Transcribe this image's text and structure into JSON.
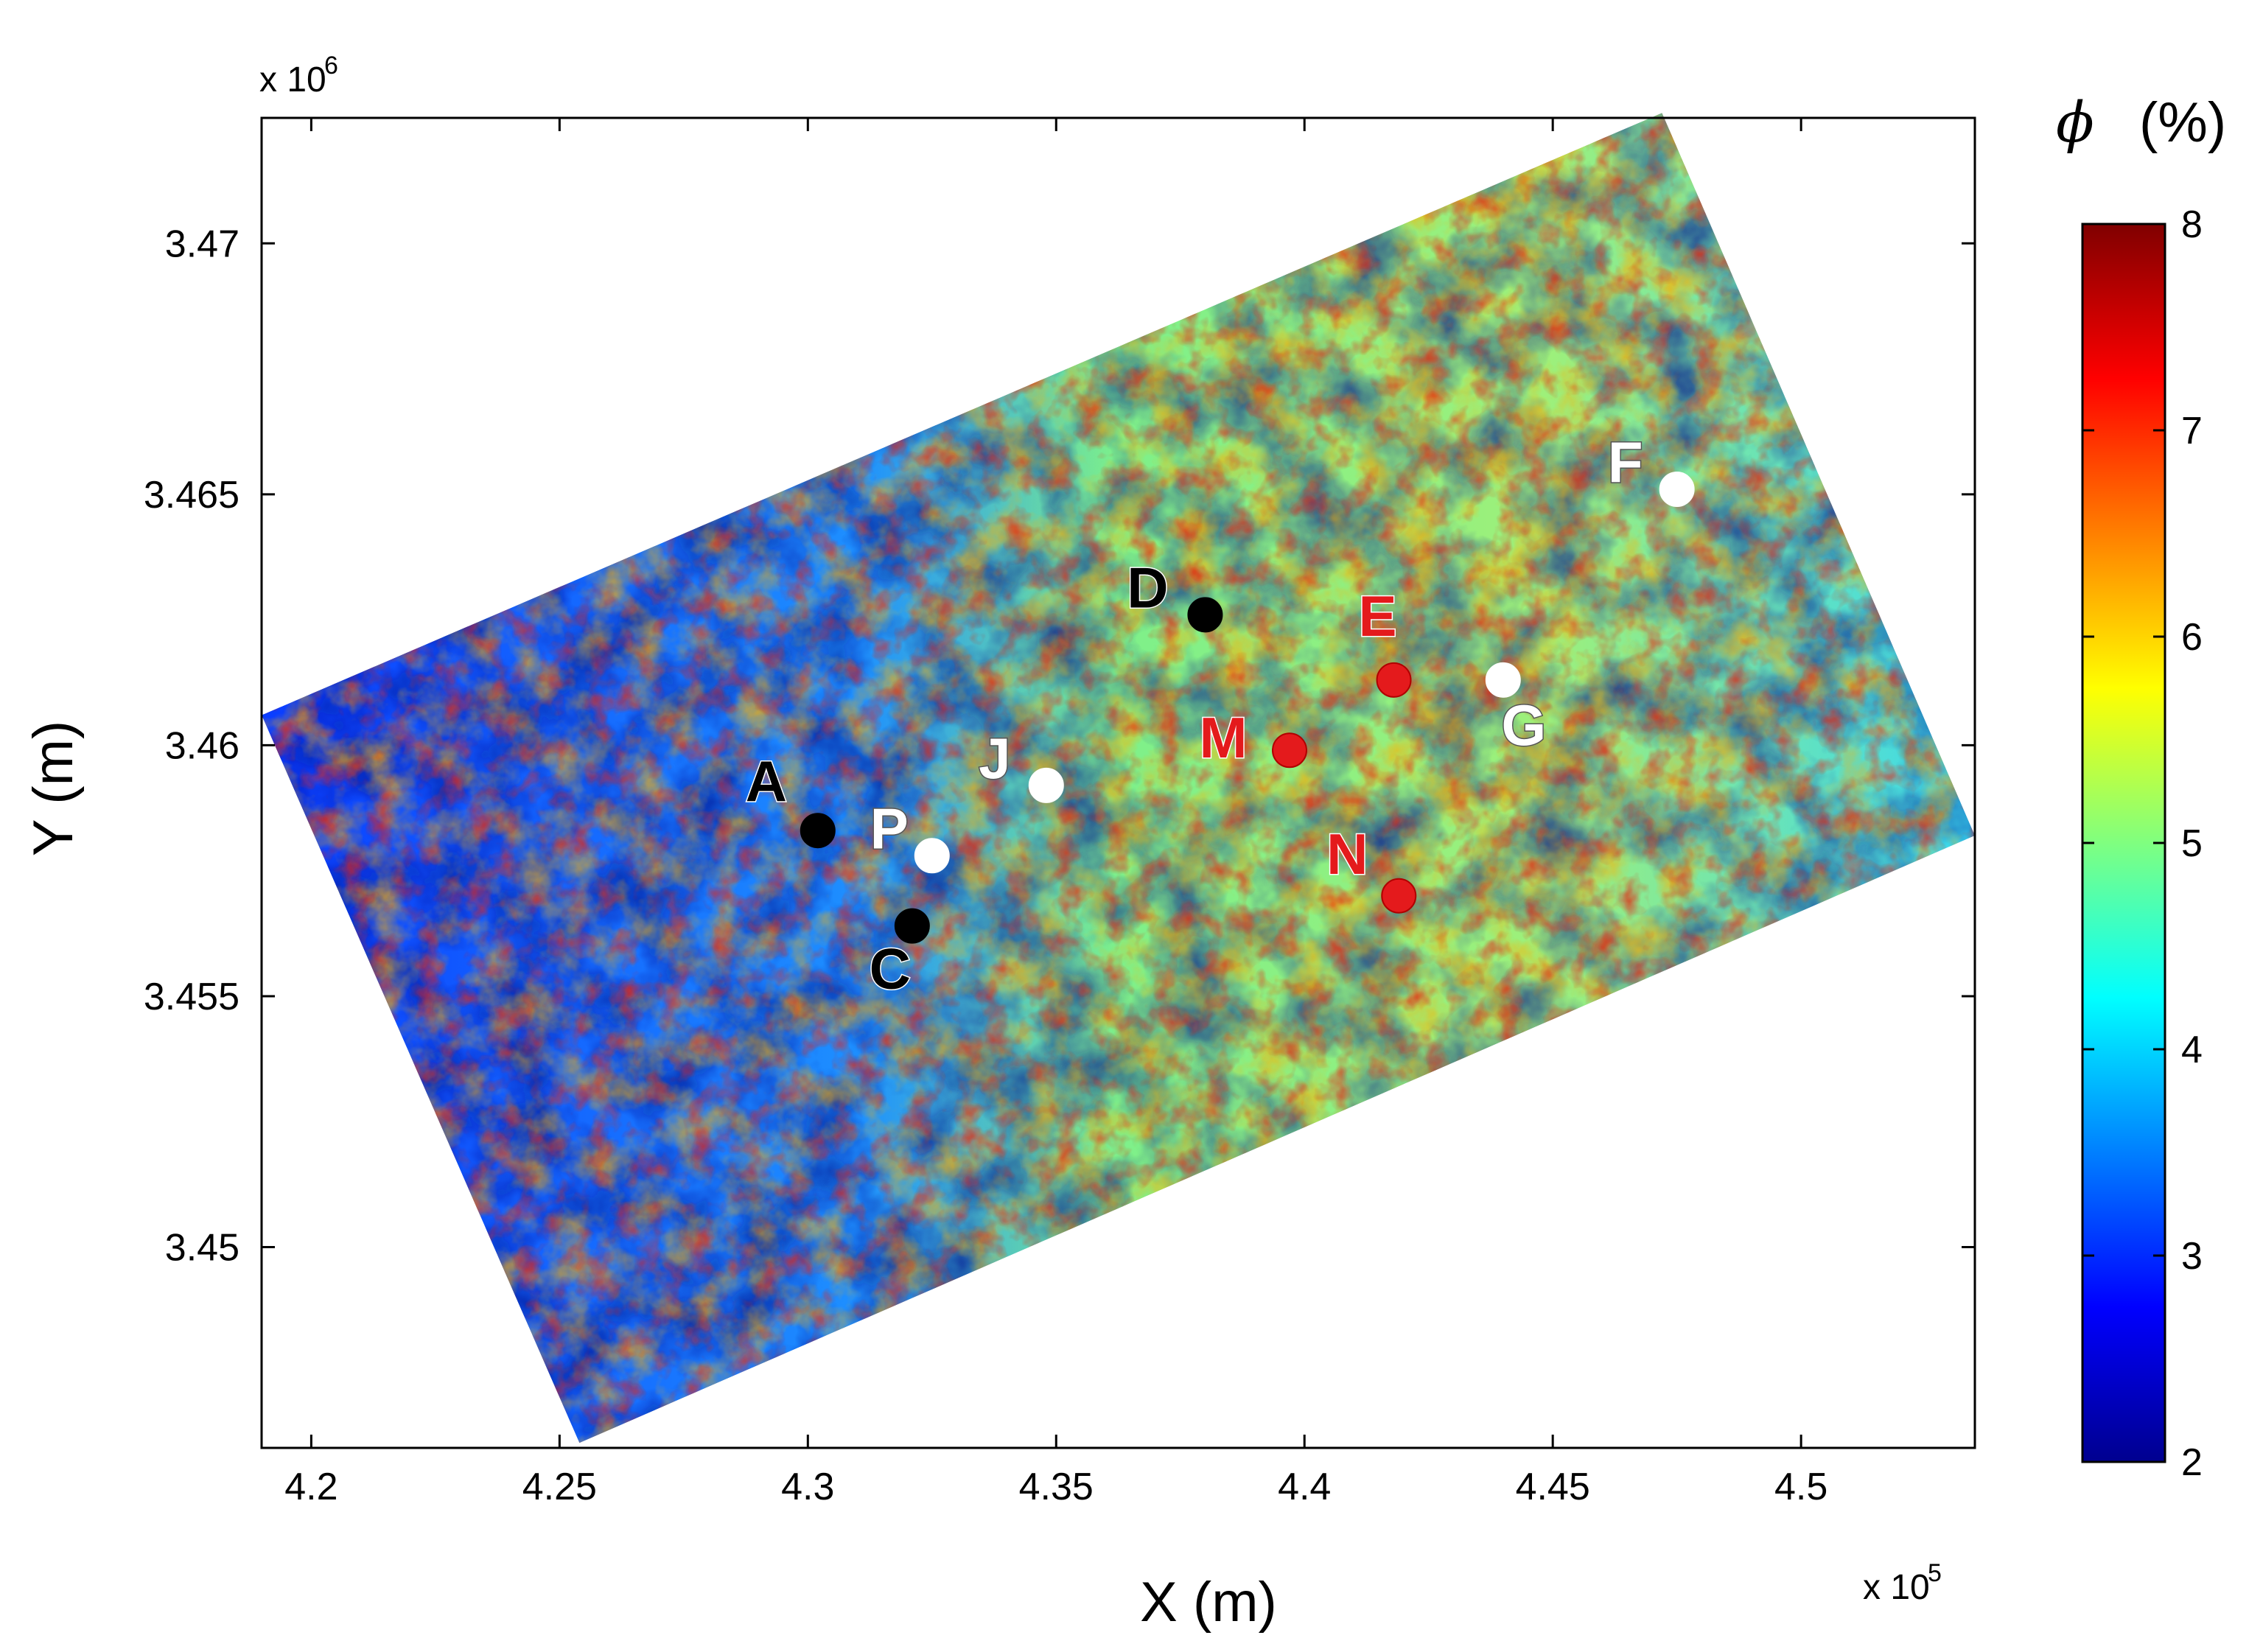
{
  "chart_data": {
    "type": "heatmap",
    "title": "",
    "xlabel": "X (m)",
    "ylabel": "Y (m)",
    "x_multiplier": "x 10",
    "x_multiplier_exp": "5",
    "y_multiplier": "x 10",
    "y_multiplier_exp": "6",
    "xlim": [
      419000,
      453500
    ],
    "ylim": [
      3446000,
      3472500
    ],
    "x_ticks": [
      {
        "value": 420000,
        "label": "4.2"
      },
      {
        "value": 425000,
        "label": "4.25"
      },
      {
        "value": 430000,
        "label": "4.3"
      },
      {
        "value": 435000,
        "label": "4.35"
      },
      {
        "value": 440000,
        "label": "4.4"
      },
      {
        "value": 445000,
        "label": "4.45"
      },
      {
        "value": 450000,
        "label": "4.5"
      }
    ],
    "y_ticks": [
      {
        "value": 3450000,
        "label": "3.45"
      },
      {
        "value": 3455000,
        "label": "3.455"
      },
      {
        "value": 3460000,
        "label": "3.46"
      },
      {
        "value": 3465000,
        "label": "3.465"
      },
      {
        "value": 3470000,
        "label": "3.47"
      }
    ],
    "survey_area_corners": [
      {
        "x": 419000,
        "y": 3460600
      },
      {
        "x": 447200,
        "y": 3472600
      },
      {
        "x": 453500,
        "y": 3458200
      },
      {
        "x": 425400,
        "y": 3446100
      }
    ],
    "colorbar": {
      "variable": "ϕ",
      "unit": "(%)",
      "range": [
        2,
        8
      ],
      "ticks": [
        "2",
        "3",
        "4",
        "5",
        "6",
        "7",
        "8"
      ],
      "colormap": "jet"
    },
    "wells": [
      {
        "name": "A",
        "x": 430200,
        "y": 3458300,
        "color": "#000000",
        "label_color": "#000000"
      },
      {
        "name": "C",
        "x": 432100,
        "y": 3456400,
        "color": "#000000",
        "label_color": "#000000"
      },
      {
        "name": "D",
        "x": 438000,
        "y": 3462600,
        "color": "#000000",
        "label_color": "#000000"
      },
      {
        "name": "E",
        "x": 441800,
        "y": 3461300,
        "color": "#e41a1c",
        "label_color": "#e41a1c"
      },
      {
        "name": "F",
        "x": 447500,
        "y": 3465100,
        "color": "#ffffff",
        "label_color": "#ffffff"
      },
      {
        "name": "G",
        "x": 444000,
        "y": 3461300,
        "color": "#ffffff",
        "label_color": "#ffffff"
      },
      {
        "name": "J",
        "x": 434800,
        "y": 3459200,
        "color": "#ffffff",
        "label_color": "#ffffff"
      },
      {
        "name": "M",
        "x": 439700,
        "y": 3459900,
        "color": "#e41a1c",
        "label_color": "#e41a1c"
      },
      {
        "name": "N",
        "x": 441900,
        "y": 3457000,
        "color": "#e41a1c",
        "label_color": "#e41a1c"
      },
      {
        "name": "P",
        "x": 432500,
        "y": 3457800,
        "color": "#ffffff",
        "label_color": "#ffffff"
      }
    ],
    "grid": false,
    "colors": {
      "low": "#00008f",
      "mid_low": "#0a5cff",
      "mid": "#34e0e8",
      "mid_high": "#7ef08a",
      "high": "#ffd000",
      "max": "#800000"
    }
  }
}
